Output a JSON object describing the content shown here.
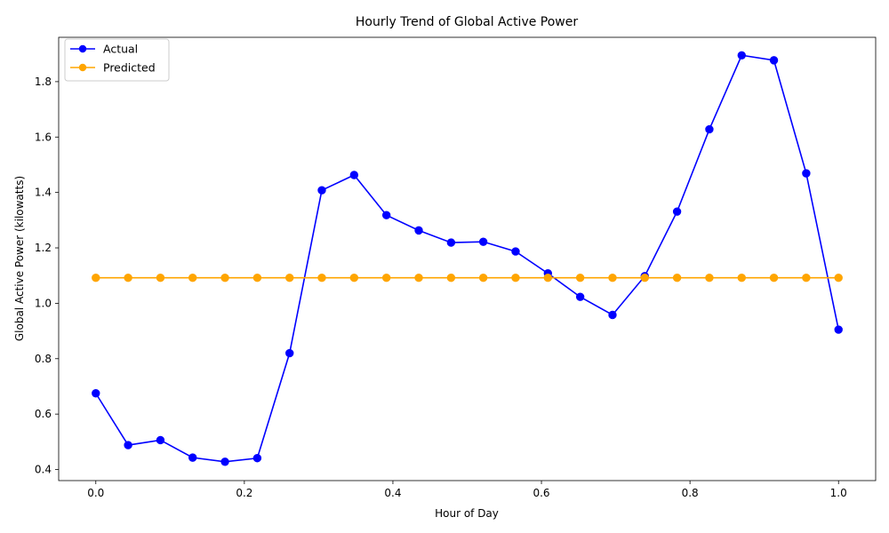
{
  "chart_data": {
    "type": "line",
    "title": "Hourly Trend of Global Active Power",
    "xlabel": "Hour of Day",
    "ylabel": "Global Active Power (kilowatts)",
    "xlim": [
      -0.05,
      1.05
    ],
    "ylim": [
      0.36,
      1.96
    ],
    "xticks": [
      0.0,
      0.2,
      0.4,
      0.6,
      0.8,
      1.0
    ],
    "xtick_labels": [
      "0.0",
      "0.2",
      "0.4",
      "0.6",
      "0.8",
      "1.0"
    ],
    "yticks": [
      0.4,
      0.6,
      0.8,
      1.0,
      1.2,
      1.4,
      1.6,
      1.8
    ],
    "ytick_labels": [
      "0.4",
      "0.6",
      "0.8",
      "1.0",
      "1.2",
      "1.4",
      "1.6",
      "1.8"
    ],
    "grid": false,
    "legend_position": "top-left",
    "x": [
      0.0,
      0.0435,
      0.087,
      0.1304,
      0.1739,
      0.2174,
      0.2609,
      0.3043,
      0.3478,
      0.3913,
      0.4348,
      0.4783,
      0.5217,
      0.5652,
      0.6087,
      0.6522,
      0.6957,
      0.7391,
      0.7826,
      0.8261,
      0.8696,
      0.913,
      0.9565,
      1.0
    ],
    "series": [
      {
        "name": "Actual",
        "color": "#0000ff",
        "marker": "circle",
        "values": [
          0.675,
          0.488,
          0.506,
          0.443,
          0.428,
          0.441,
          0.82,
          1.408,
          1.463,
          1.318,
          1.263,
          1.219,
          1.222,
          1.187,
          1.108,
          1.023,
          0.958,
          1.098,
          1.331,
          1.628,
          1.895,
          1.877,
          1.469,
          0.905
        ]
      },
      {
        "name": "Predicted",
        "color": "#ffa500",
        "marker": "circle",
        "values": [
          1.092,
          1.092,
          1.092,
          1.092,
          1.092,
          1.092,
          1.092,
          1.092,
          1.092,
          1.092,
          1.092,
          1.092,
          1.092,
          1.092,
          1.092,
          1.092,
          1.092,
          1.092,
          1.092,
          1.092,
          1.092,
          1.092,
          1.092,
          1.092
        ]
      }
    ]
  }
}
